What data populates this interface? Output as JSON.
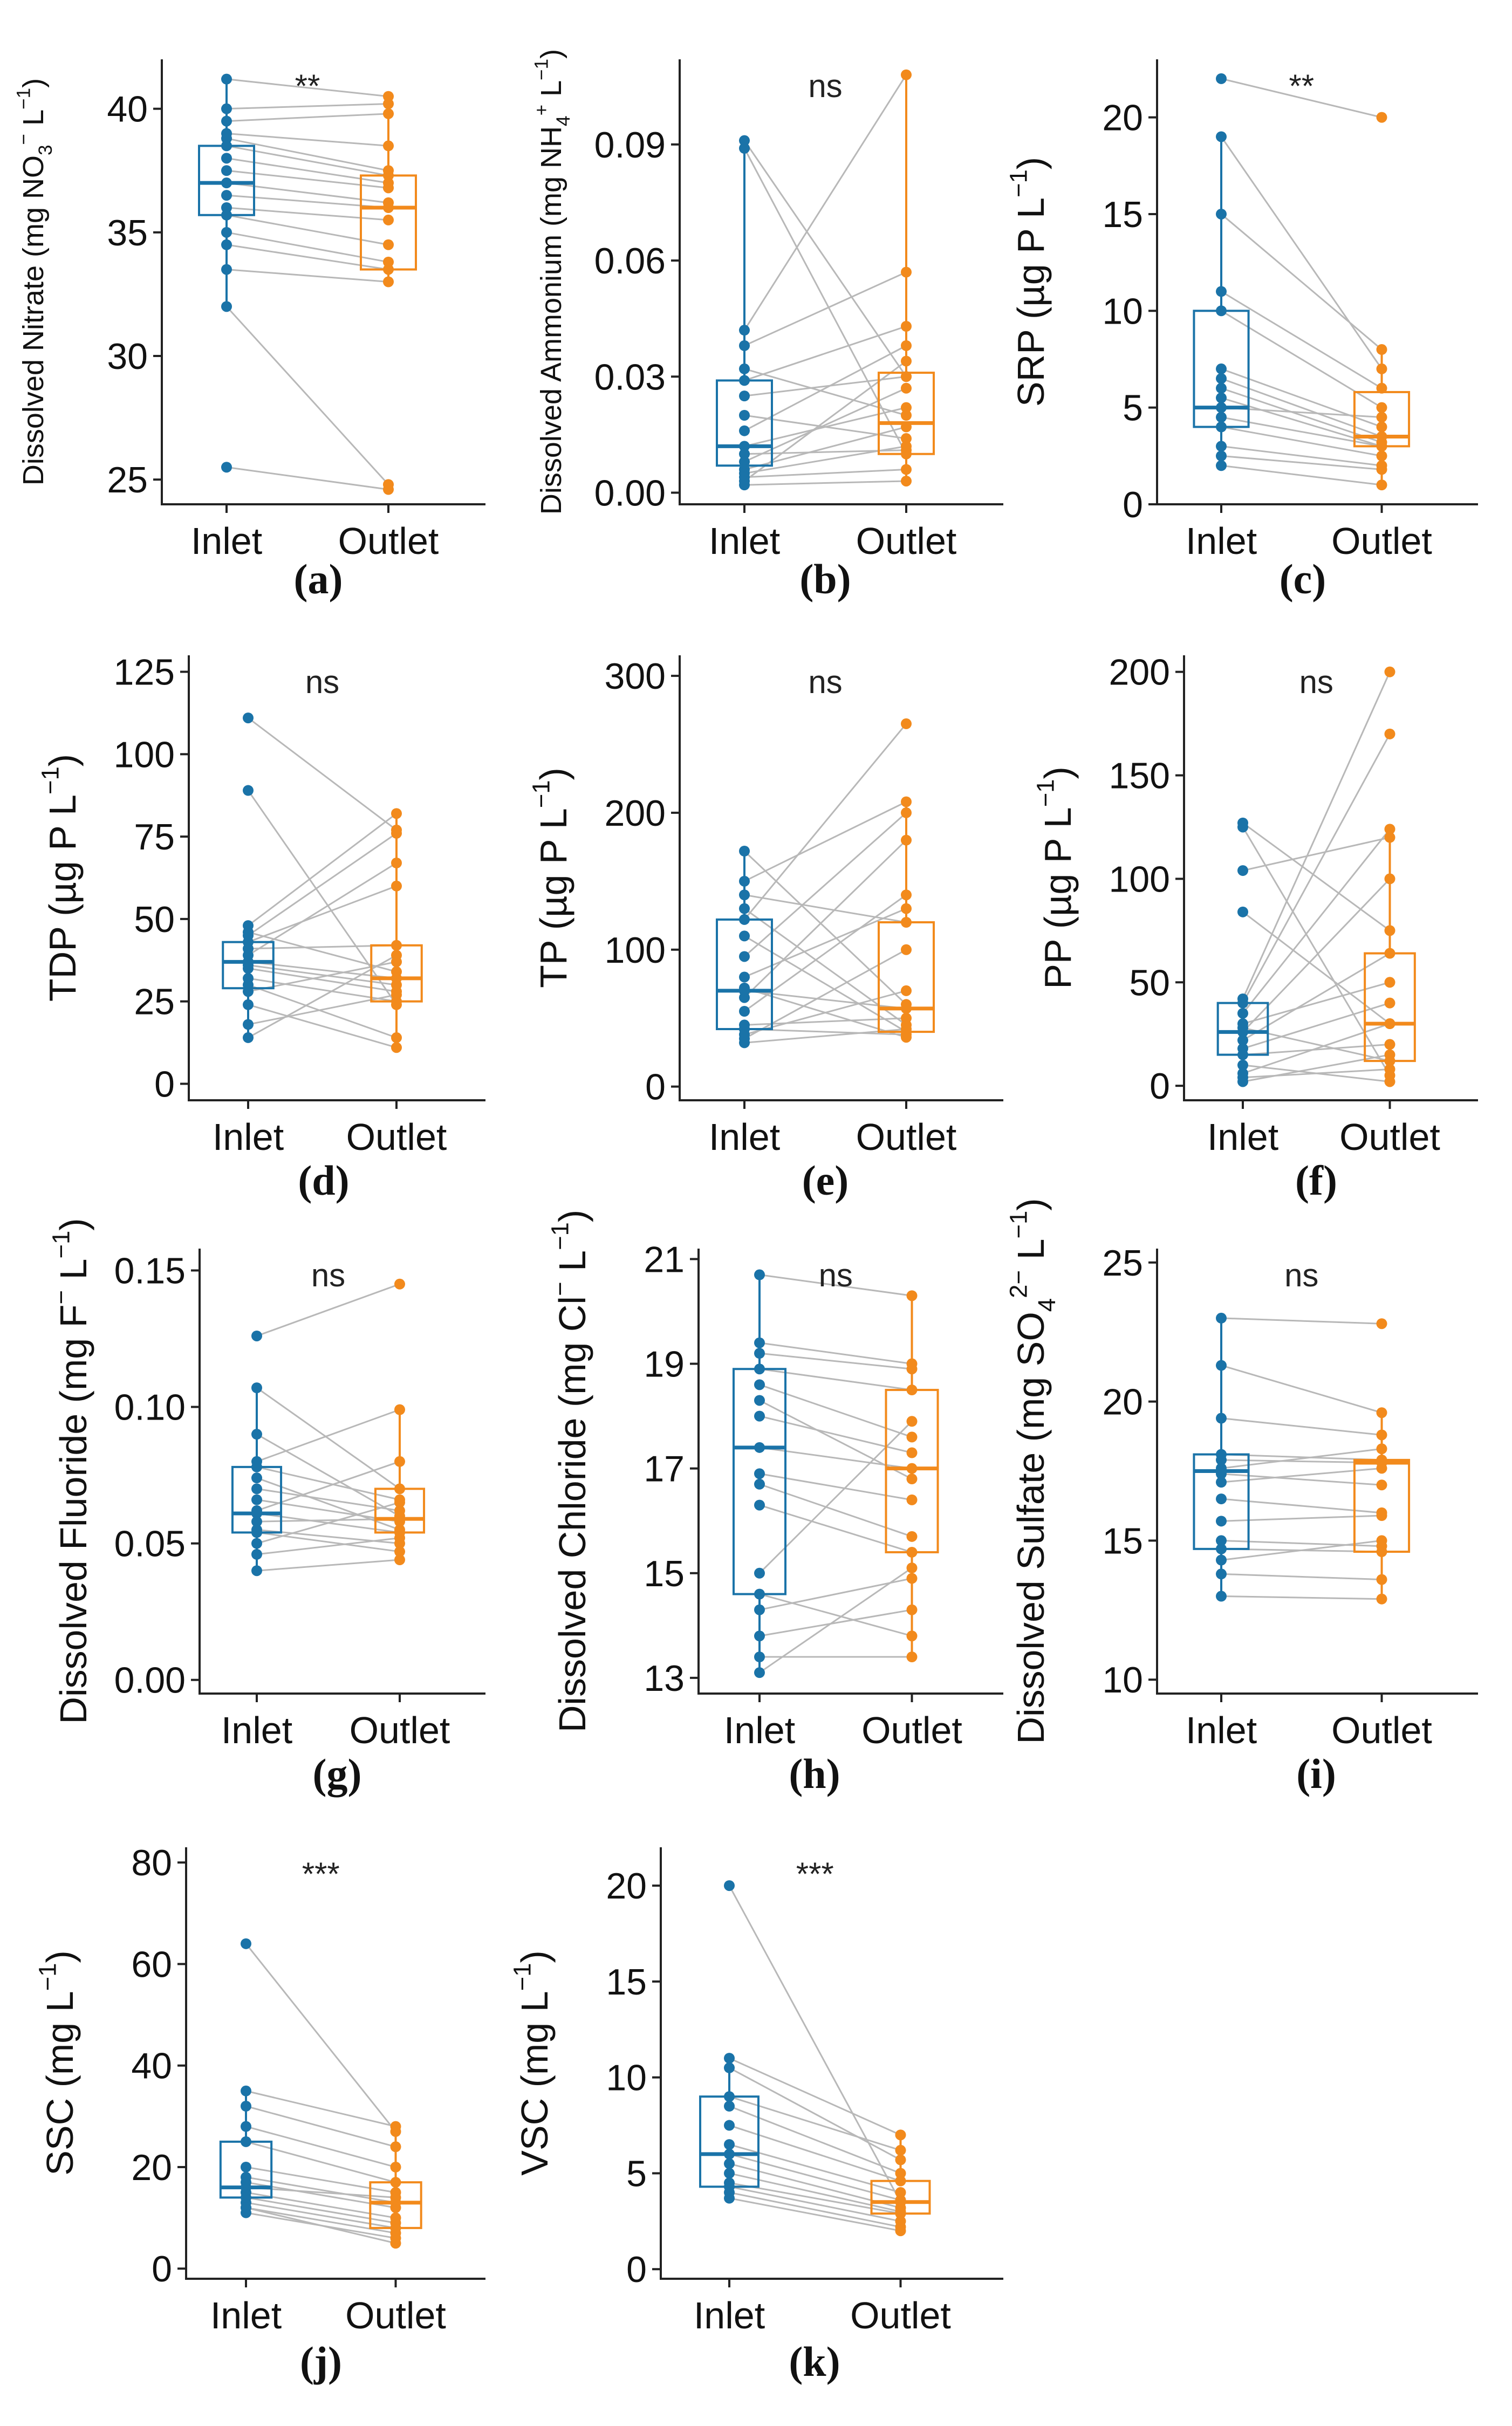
{
  "colors": {
    "inlet": "#1a73a8",
    "outlet": "#f28a1c",
    "line": "#b8b8b8",
    "axis": "#222222"
  },
  "chart_data": [
    {
      "type": "box-paired",
      "panel_label": "(a)",
      "ylabel_main": "Dissolved Nitrate",
      "ylabel_unit": "(mg NO",
      "ylabel_sub": "3",
      "ylabel_sup": "−",
      "ylabel_tail": " L",
      "ylabel_tailsup": "−1",
      "ylabel_close": ")",
      "categories": [
        "Inlet",
        "Outlet"
      ],
      "ylim": [
        24,
        42
      ],
      "yticks": [
        25,
        30,
        35,
        40
      ],
      "ytick_labels": [
        "25",
        "30",
        "35",
        "40"
      ],
      "significance": "**",
      "inlet_box": {
        "min": 32,
        "q1": 35.7,
        "median": 37,
        "q3": 38.5,
        "max": 41.2
      },
      "outlet_box": {
        "min": 33,
        "q1": 33.5,
        "median": 36,
        "q3": 37.3,
        "max": 40.5
      },
      "pairs": [
        [
          41.2,
          40.5
        ],
        [
          40,
          40.2
        ],
        [
          39.5,
          39.8
        ],
        [
          39,
          38.5
        ],
        [
          38.8,
          37.5
        ],
        [
          38.5,
          37.3
        ],
        [
          38,
          37
        ],
        [
          37.5,
          36.8
        ],
        [
          37,
          36.2
        ],
        [
          36.5,
          36
        ],
        [
          36,
          35.5
        ],
        [
          35.7,
          34.5
        ],
        [
          35,
          33.8
        ],
        [
          34.5,
          33.5
        ],
        [
          33.5,
          33
        ],
        [
          32,
          24.8
        ],
        [
          25.5,
          24.6
        ]
      ]
    },
    {
      "type": "box-paired",
      "panel_label": "(b)",
      "ylabel_main": "Dissolved Ammonium",
      "ylabel_unit": "(mg NH",
      "ylabel_sub": "4",
      "ylabel_sup": "+",
      "ylabel_tail": " L",
      "ylabel_tailsup": "−1",
      "ylabel_close": ")",
      "categories": [
        "Inlet",
        "Outlet"
      ],
      "ylim": [
        -0.003,
        0.112
      ],
      "yticks": [
        0,
        0.03,
        0.06,
        0.09
      ],
      "ytick_labels": [
        "0.00",
        "0.03",
        "0.06",
        "0.09"
      ],
      "significance": "ns",
      "inlet_box": {
        "min": 0.002,
        "q1": 0.007,
        "median": 0.012,
        "q3": 0.029,
        "max": 0.091
      },
      "outlet_box": {
        "min": 0.003,
        "q1": 0.01,
        "median": 0.018,
        "q3": 0.031,
        "max": 0.108
      },
      "pairs": [
        [
          0.091,
          0.03
        ],
        [
          0.089,
          0.01
        ],
        [
          0.042,
          0.108
        ],
        [
          0.038,
          0.057
        ],
        [
          0.032,
          0.02
        ],
        [
          0.029,
          0.043
        ],
        [
          0.025,
          0.03
        ],
        [
          0.02,
          0.014
        ],
        [
          0.016,
          0.038
        ],
        [
          0.012,
          0.022
        ],
        [
          0.01,
          0.011
        ],
        [
          0.008,
          0.027
        ],
        [
          0.006,
          0.017
        ],
        [
          0.005,
          0.012
        ],
        [
          0.004,
          0.006
        ],
        [
          0.003,
          0.034
        ],
        [
          0.002,
          0.003
        ]
      ]
    },
    {
      "type": "box-paired",
      "panel_label": "(c)",
      "ylabel_main": "SRP",
      "ylabel_unit": "(µg P L",
      "ylabel_sub": "",
      "ylabel_sup": "−1",
      "ylabel_tail": "",
      "ylabel_tailsup": "",
      "ylabel_close": ")",
      "categories": [
        "Inlet",
        "Outlet"
      ],
      "ylim": [
        0,
        23
      ],
      "yticks": [
        0,
        5,
        10,
        15,
        20
      ],
      "ytick_labels": [
        "0",
        "5",
        "10",
        "15",
        "20"
      ],
      "significance": "**",
      "inlet_box": {
        "min": 2,
        "q1": 4,
        "median": 5,
        "q3": 10,
        "max": 19
      },
      "outlet_box": {
        "min": 1,
        "q1": 3,
        "median": 3.5,
        "q3": 5.8,
        "max": 8
      },
      "pairs": [
        [
          22,
          20
        ],
        [
          19,
          7
        ],
        [
          15,
          8
        ],
        [
          11,
          6
        ],
        [
          10,
          5
        ],
        [
          7,
          4
        ],
        [
          6.5,
          3.5
        ],
        [
          6,
          3.2
        ],
        [
          5.5,
          3
        ],
        [
          5,
          4.5
        ],
        [
          4.5,
          3
        ],
        [
          4,
          2.5
        ],
        [
          3,
          2
        ],
        [
          2.5,
          1.8
        ],
        [
          2,
          1
        ]
      ]
    },
    {
      "type": "box-paired",
      "panel_label": "(d)",
      "ylabel_main": "TDP",
      "ylabel_unit": "(µg P L",
      "ylabel_sub": "",
      "ylabel_sup": "−1",
      "ylabel_tail": "",
      "ylabel_tailsup": "",
      "ylabel_close": ")",
      "categories": [
        "Inlet",
        "Outlet"
      ],
      "ylim": [
        -5,
        130
      ],
      "yticks": [
        0,
        25,
        50,
        75,
        100,
        125
      ],
      "ytick_labels": [
        "0",
        "25",
        "50",
        "75",
        "100",
        "125"
      ],
      "significance": "ns",
      "inlet_box": {
        "min": 14,
        "q1": 29,
        "median": 37,
        "q3": 43,
        "max": 48
      },
      "outlet_box": {
        "min": 11,
        "q1": 25,
        "median": 32,
        "q3": 42,
        "max": 82
      },
      "pairs": [
        [
          111,
          77
        ],
        [
          89,
          24
        ],
        [
          48,
          82
        ],
        [
          46,
          34
        ],
        [
          45,
          76
        ],
        [
          43,
          60
        ],
        [
          41,
          42
        ],
        [
          39,
          67
        ],
        [
          37,
          32
        ],
        [
          36,
          30
        ],
        [
          35,
          28
        ],
        [
          32,
          25
        ],
        [
          30,
          14
        ],
        [
          28,
          37
        ],
        [
          24,
          11
        ],
        [
          18,
          27
        ],
        [
          14,
          39
        ]
      ]
    },
    {
      "type": "box-paired",
      "panel_label": "(e)",
      "ylabel_main": "TP",
      "ylabel_unit": "(µg P L",
      "ylabel_sub": "",
      "ylabel_sup": "−1",
      "ylabel_tail": "",
      "ylabel_tailsup": "",
      "ylabel_close": ")",
      "categories": [
        "Inlet",
        "Outlet"
      ],
      "ylim": [
        -10,
        315
      ],
      "yticks": [
        0,
        100,
        200,
        300
      ],
      "ytick_labels": [
        "0",
        "100",
        "200",
        "300"
      ],
      "significance": "ns",
      "inlet_box": {
        "min": 32,
        "q1": 42,
        "median": 70,
        "q3": 122,
        "max": 172
      },
      "outlet_box": {
        "min": 36,
        "q1": 40,
        "median": 57,
        "q3": 120,
        "max": 208
      },
      "pairs": [
        [
          172,
          60
        ],
        [
          150,
          208
        ],
        [
          140,
          120
        ],
        [
          130,
          45
        ],
        [
          122,
          265
        ],
        [
          110,
          40
        ],
        [
          95,
          200
        ],
        [
          80,
          130
        ],
        [
          72,
          36
        ],
        [
          70,
          57
        ],
        [
          65,
          180
        ],
        [
          55,
          140
        ],
        [
          45,
          50
        ],
        [
          42,
          38
        ],
        [
          38,
          70
        ],
        [
          35,
          100
        ],
        [
          32,
          42
        ]
      ]
    },
    {
      "type": "box-paired",
      "panel_label": "(f)",
      "ylabel_main": "PP",
      "ylabel_unit": "(µg P L",
      "ylabel_sub": "",
      "ylabel_sup": "−1",
      "ylabel_tail": "",
      "ylabel_tailsup": "",
      "ylabel_close": ")",
      "categories": [
        "Inlet",
        "Outlet"
      ],
      "ylim": [
        -7,
        208
      ],
      "yticks": [
        0,
        50,
        100,
        150,
        200
      ],
      "ytick_labels": [
        "0",
        "50",
        "100",
        "150",
        "200"
      ],
      "significance": "ns",
      "inlet_box": {
        "min": 2,
        "q1": 15,
        "median": 26,
        "q3": 40,
        "max": 42
      },
      "outlet_box": {
        "min": 2,
        "q1": 12,
        "median": 30,
        "q3": 64,
        "max": 124
      },
      "pairs": [
        [
          127,
          75
        ],
        [
          125,
          5
        ],
        [
          104,
          120
        ],
        [
          84,
          30
        ],
        [
          42,
          200
        ],
        [
          40,
          170
        ],
        [
          35,
          124
        ],
        [
          30,
          50
        ],
        [
          28,
          12
        ],
        [
          26,
          100
        ],
        [
          22,
          64
        ],
        [
          18,
          40
        ],
        [
          15,
          20
        ],
        [
          10,
          2
        ],
        [
          6,
          30
        ],
        [
          4,
          8
        ],
        [
          2,
          15
        ]
      ]
    },
    {
      "type": "box-paired",
      "panel_label": "(g)",
      "ylabel_main": "Dissolved Fluoride",
      "ylabel_unit": "(mg F",
      "ylabel_sub": "",
      "ylabel_sup": "−",
      "ylabel_tail": " L",
      "ylabel_tailsup": "−1",
      "ylabel_close": ")",
      "categories": [
        "Inlet",
        "Outlet"
      ],
      "ylim": [
        -0.005,
        0.158
      ],
      "yticks": [
        0,
        0.05,
        0.1,
        0.15
      ],
      "ytick_labels": [
        "0.00",
        "0.05",
        "0.10",
        "0.15"
      ],
      "significance": "ns",
      "inlet_box": {
        "min": 0.04,
        "q1": 0.054,
        "median": 0.061,
        "q3": 0.078,
        "max": 0.107
      },
      "outlet_box": {
        "min": 0.044,
        "q1": 0.054,
        "median": 0.059,
        "q3": 0.07,
        "max": 0.099
      },
      "pairs": [
        [
          0.126,
          0.145
        ],
        [
          0.107,
          0.07
        ],
        [
          0.09,
          0.06
        ],
        [
          0.08,
          0.099
        ],
        [
          0.078,
          0.066
        ],
        [
          0.074,
          0.055
        ],
        [
          0.07,
          0.062
        ],
        [
          0.066,
          0.058
        ],
        [
          0.062,
          0.08
        ],
        [
          0.061,
          0.054
        ],
        [
          0.058,
          0.059
        ],
        [
          0.055,
          0.05
        ],
        [
          0.054,
          0.047
        ],
        [
          0.05,
          0.065
        ],
        [
          0.046,
          0.052
        ],
        [
          0.04,
          0.044
        ]
      ]
    },
    {
      "type": "box-paired",
      "panel_label": "(h)",
      "ylabel_main": "Dissolved Chloride",
      "ylabel_unit": "(mg Cl",
      "ylabel_sub": "",
      "ylabel_sup": "−",
      "ylabel_tail": " L",
      "ylabel_tailsup": "−1",
      "ylabel_close": ")",
      "categories": [
        "Inlet",
        "Outlet"
      ],
      "ylim": [
        12.7,
        21.2
      ],
      "yticks": [
        13,
        15,
        17,
        19,
        21
      ],
      "ytick_labels": [
        "13",
        "15",
        "17",
        "19",
        "21"
      ],
      "significance": "ns",
      "inlet_box": {
        "min": 13.1,
        "q1": 14.6,
        "median": 17.4,
        "q3": 18.9,
        "max": 20.7
      },
      "outlet_box": {
        "min": 13.4,
        "q1": 15.4,
        "median": 17.0,
        "q3": 18.5,
        "max": 20.3
      },
      "pairs": [
        [
          20.7,
          20.3
        ],
        [
          19.4,
          19.0
        ],
        [
          19.2,
          18.9
        ],
        [
          18.9,
          18.5
        ],
        [
          18.6,
          17.6
        ],
        [
          18.3,
          16.8
        ],
        [
          18.0,
          17.3
        ],
        [
          17.4,
          17.0
        ],
        [
          16.9,
          16.4
        ],
        [
          16.7,
          15.7
        ],
        [
          16.3,
          15.4
        ],
        [
          15.0,
          17.9
        ],
        [
          14.6,
          13.8
        ],
        [
          14.3,
          14.9
        ],
        [
          13.8,
          14.3
        ],
        [
          13.4,
          13.4
        ],
        [
          13.1,
          15.1
        ]
      ]
    },
    {
      "type": "box-paired",
      "panel_label": "(i)",
      "ylabel_main": "Dissolved Sulfate",
      "ylabel_unit": "(mg SO",
      "ylabel_sub": "4",
      "ylabel_sup": "2−",
      "ylabel_tail": " L",
      "ylabel_tailsup": "−1",
      "ylabel_close": ")",
      "categories": [
        "Inlet",
        "Outlet"
      ],
      "ylim": [
        9.5,
        25.5
      ],
      "yticks": [
        10,
        15,
        20,
        25
      ],
      "ytick_labels": [
        "10",
        "15",
        "20",
        "25"
      ],
      "significance": "ns",
      "inlet_box": {
        "min": 13,
        "q1": 14.7,
        "median": 17.5,
        "q3": 18.1,
        "max": 23
      },
      "outlet_box": {
        "min": 12.9,
        "q1": 14.6,
        "median": 17.8,
        "q3": 17.9,
        "max": 19.6
      },
      "pairs": [
        [
          23.0,
          22.8
        ],
        [
          21.3,
          19.6
        ],
        [
          19.4,
          18.8
        ],
        [
          18.1,
          17.9
        ],
        [
          17.9,
          17.8
        ],
        [
          17.6,
          18.3
        ],
        [
          17.4,
          17.0
        ],
        [
          17.1,
          17.6
        ],
        [
          16.5,
          16.0
        ],
        [
          15.7,
          15.9
        ],
        [
          15.0,
          14.8
        ],
        [
          14.7,
          14.6
        ],
        [
          14.3,
          15.0
        ],
        [
          13.8,
          13.6
        ],
        [
          13.0,
          12.9
        ]
      ]
    },
    {
      "type": "box-paired",
      "panel_label": "(j)",
      "ylabel_main": "SSC",
      "ylabel_unit": "(mg L",
      "ylabel_sub": "",
      "ylabel_sup": "−1",
      "ylabel_tail": "",
      "ylabel_tailsup": "",
      "ylabel_close": ")",
      "categories": [
        "Inlet",
        "Outlet"
      ],
      "ylim": [
        -2,
        83
      ],
      "yticks": [
        0,
        20,
        40,
        60,
        80
      ],
      "ytick_labels": [
        "0",
        "20",
        "40",
        "60",
        "80"
      ],
      "significance": "***",
      "inlet_box": {
        "min": 11,
        "q1": 14,
        "median": 16,
        "q3": 25,
        "max": 35
      },
      "outlet_box": {
        "min": 5,
        "q1": 8,
        "median": 13,
        "q3": 17,
        "max": 28
      },
      "pairs": [
        [
          64,
          27
        ],
        [
          35,
          28
        ],
        [
          32,
          24
        ],
        [
          28,
          20
        ],
        [
          25,
          17
        ],
        [
          20,
          15
        ],
        [
          18,
          13
        ],
        [
          17,
          12
        ],
        [
          16,
          14
        ],
        [
          15,
          10
        ],
        [
          14,
          9
        ],
        [
          13,
          8
        ],
        [
          12,
          7
        ],
        [
          12,
          5
        ],
        [
          11,
          6
        ]
      ]
    },
    {
      "type": "box-paired",
      "panel_label": "(k)",
      "ylabel_main": "VSC",
      "ylabel_unit": "(mg L",
      "ylabel_sub": "",
      "ylabel_sup": "−1",
      "ylabel_tail": "",
      "ylabel_tailsup": "",
      "ylabel_close": ")",
      "categories": [
        "Inlet",
        "Outlet"
      ],
      "ylim": [
        -0.5,
        22
      ],
      "yticks": [
        0,
        5,
        10,
        15,
        20
      ],
      "ytick_labels": [
        "0",
        "5",
        "10",
        "15",
        "20"
      ],
      "significance": "***",
      "inlet_box": {
        "min": 3.7,
        "q1": 4.3,
        "median": 6,
        "q3": 9,
        "max": 11
      },
      "outlet_box": {
        "min": 2,
        "q1": 2.9,
        "median": 3.5,
        "q3": 4.6,
        "max": 7
      },
      "pairs": [
        [
          20,
          3.5
        ],
        [
          11,
          7
        ],
        [
          10.5,
          5.7
        ],
        [
          9,
          6.2
        ],
        [
          8.5,
          5
        ],
        [
          7.5,
          4.6
        ],
        [
          6.5,
          4
        ],
        [
          6,
          3.6
        ],
        [
          5.5,
          3.2
        ],
        [
          5,
          3
        ],
        [
          4.5,
          2.9
        ],
        [
          4.3,
          2.5
        ],
        [
          4,
          2.2
        ],
        [
          3.7,
          2
        ]
      ]
    }
  ]
}
